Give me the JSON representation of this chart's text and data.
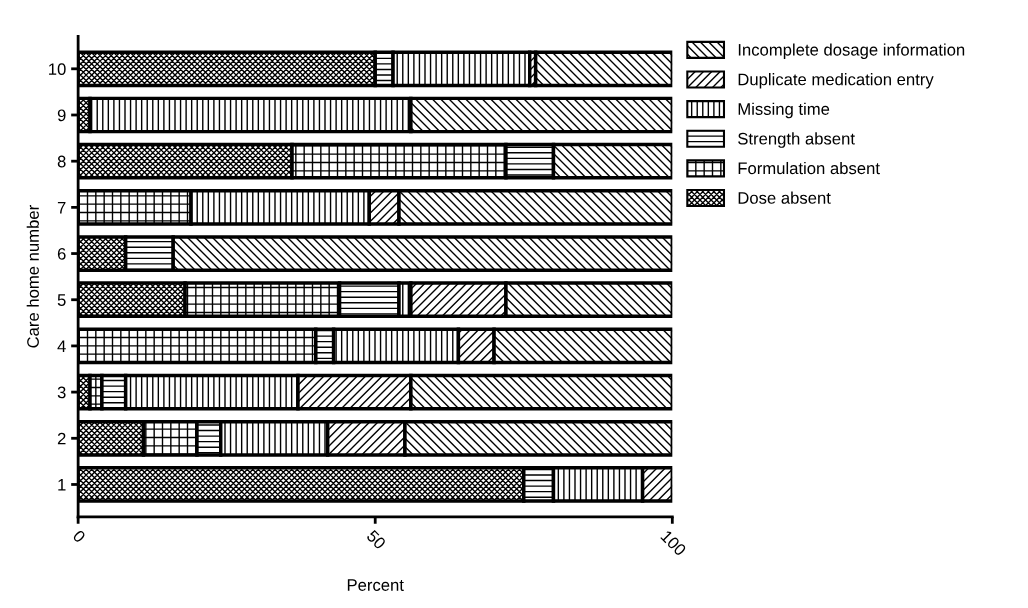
{
  "chart_data": {
    "type": "bar",
    "orientation": "horizontal",
    "stacked": true,
    "xlabel": "Percent",
    "ylabel": "Care home number",
    "categories": [
      "10",
      "9",
      "8",
      "7",
      "6",
      "5",
      "4",
      "3",
      "2",
      "1"
    ],
    "xlim": [
      0,
      100
    ],
    "xticks": [
      0,
      50,
      100
    ],
    "grid": false,
    "legend": "top right",
    "series": [
      {
        "name": "Dose absent",
        "color": "#000000",
        "values": [
          50,
          2,
          36,
          0,
          8,
          18,
          0,
          2,
          11,
          75
        ]
      },
      {
        "name": "Formulation absent",
        "color": "#000000",
        "values": [
          0,
          0,
          36,
          19,
          0,
          26,
          40,
          2,
          9,
          0
        ]
      },
      {
        "name": "Strength absent",
        "color": "#000000",
        "values": [
          3,
          0,
          8,
          0,
          8,
          10,
          3,
          4,
          4,
          5
        ]
      },
      {
        "name": "Missing time",
        "color": "#000000",
        "values": [
          23,
          54,
          0,
          30,
          0,
          2,
          21,
          29,
          18,
          15
        ]
      },
      {
        "name": "Duplicate medication entry",
        "color": "#000000",
        "values": [
          1,
          0,
          0,
          5,
          0,
          16,
          6,
          19,
          13,
          5
        ]
      },
      {
        "name": "Incomplete dosage information",
        "color": "#000000",
        "values": [
          23,
          44,
          20,
          46,
          84,
          28,
          30,
          44,
          45,
          0
        ]
      }
    ]
  }
}
